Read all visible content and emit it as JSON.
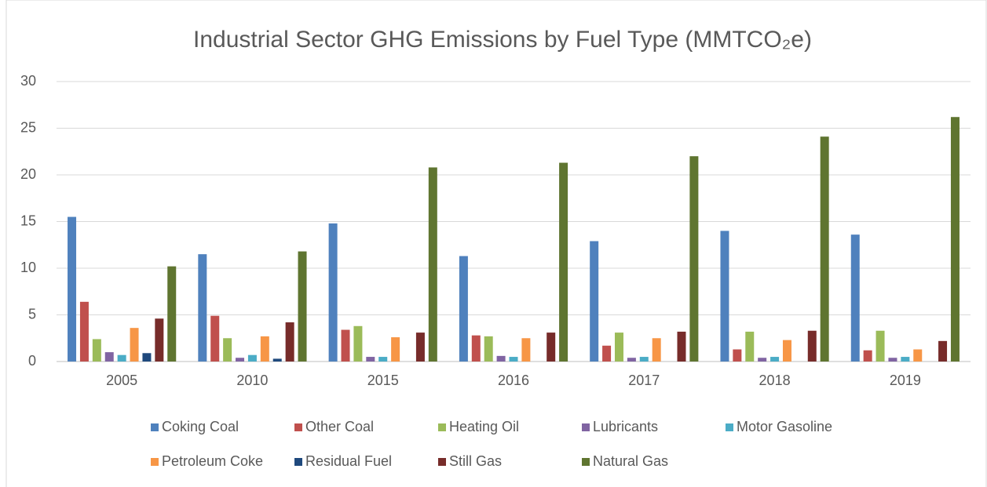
{
  "chart_data": {
    "type": "bar",
    "title": "Industrial Sector GHG Emissions by Fuel Type (MMTCO₂e)",
    "categories": [
      "2005",
      "2010",
      "2015",
      "2016",
      "2017",
      "2018",
      "2019"
    ],
    "series": [
      {
        "name": "Coking Coal",
        "color": "#4f81bd",
        "values": [
          15.5,
          11.5,
          14.8,
          11.3,
          12.9,
          14.0,
          13.6
        ]
      },
      {
        "name": "Other Coal",
        "color": "#c0504d",
        "values": [
          6.4,
          4.9,
          3.4,
          2.8,
          1.7,
          1.3,
          1.2
        ]
      },
      {
        "name": "Heating Oil",
        "color": "#9bbb59",
        "values": [
          2.4,
          2.5,
          3.8,
          2.7,
          3.1,
          3.2,
          3.3
        ]
      },
      {
        "name": "Lubricants",
        "color": "#8064a2",
        "values": [
          1.0,
          0.4,
          0.5,
          0.6,
          0.4,
          0.4,
          0.4
        ]
      },
      {
        "name": "Motor Gasoline",
        "color": "#4bacc6",
        "values": [
          0.7,
          0.7,
          0.5,
          0.5,
          0.5,
          0.5,
          0.5
        ]
      },
      {
        "name": "Petroleum Coke",
        "color": "#f79646",
        "values": [
          3.6,
          2.7,
          2.6,
          2.5,
          2.5,
          2.3,
          1.3
        ]
      },
      {
        "name": "Residual Fuel",
        "color": "#1f497d",
        "values": [
          0.9,
          0.3,
          0,
          0,
          0,
          0,
          0
        ]
      },
      {
        "name": "Still Gas",
        "color": "#772c2a",
        "values": [
          4.6,
          4.2,
          3.1,
          3.1,
          3.2,
          3.3,
          2.2
        ]
      },
      {
        "name": "Natural Gas",
        "color": "#5f7530",
        "values": [
          10.2,
          11.8,
          20.8,
          21.3,
          22.0,
          24.1,
          26.2
        ]
      }
    ],
    "ylim": [
      0,
      30
    ],
    "yticks": [
      0,
      5,
      10,
      15,
      20,
      25,
      30
    ],
    "grid": true,
    "legend": "bottom"
  }
}
